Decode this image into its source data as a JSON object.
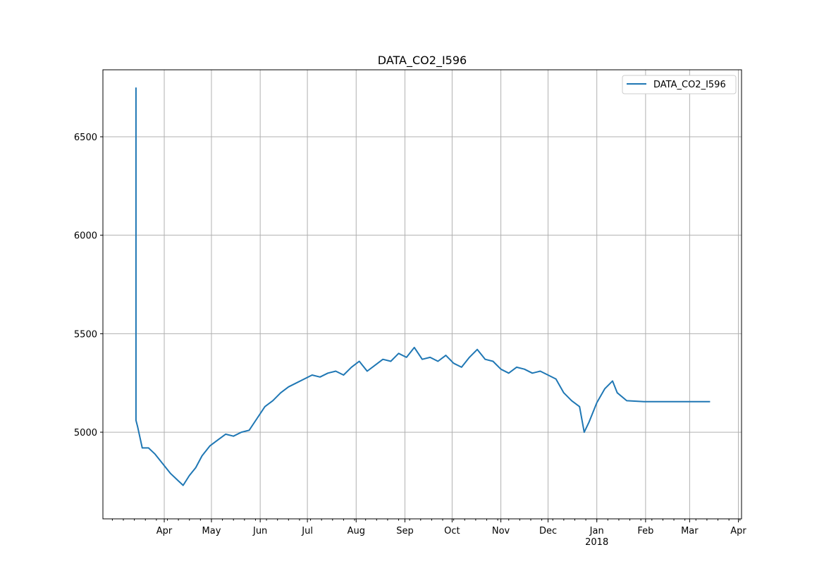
{
  "chart_data": {
    "type": "line",
    "title": "DATA_CO2_I596",
    "xlabel": "",
    "ylabel": "",
    "legend": {
      "placement": "top-right",
      "entries": [
        "DATA_CO2_I596"
      ]
    },
    "grid": true,
    "xlim": [
      "2017-02-21",
      "2018-04-03"
    ],
    "ylim": [
      4560,
      6840
    ],
    "x_ticks": [
      {
        "date": "2017-04-01",
        "label": "Apr"
      },
      {
        "date": "2017-05-01",
        "label": "May"
      },
      {
        "date": "2017-06-01",
        "label": "Jun"
      },
      {
        "date": "2017-07-01",
        "label": "Jul"
      },
      {
        "date": "2017-08-01",
        "label": "Aug"
      },
      {
        "date": "2017-09-01",
        "label": "Sep"
      },
      {
        "date": "2017-10-01",
        "label": "Oct"
      },
      {
        "date": "2017-11-01",
        "label": "Nov"
      },
      {
        "date": "2017-12-01",
        "label": "Dec"
      },
      {
        "date": "2018-01-01",
        "label": "Jan",
        "sublabel": "2018"
      },
      {
        "date": "2018-02-01",
        "label": "Feb"
      },
      {
        "date": "2018-03-01",
        "label": "Mar"
      },
      {
        "date": "2018-04-01",
        "label": "Apr"
      }
    ],
    "y_ticks": [
      5000,
      5500,
      6000,
      6500
    ],
    "series": [
      {
        "name": "DATA_CO2_I596",
        "color": "#1f77b4",
        "x": [
          "2017-03-14",
          "2017-03-14",
          "2017-03-15",
          "2017-03-18",
          "2017-03-22",
          "2017-03-26",
          "2017-03-31",
          "2017-04-05",
          "2017-04-09",
          "2017-04-13",
          "2017-04-17",
          "2017-04-21",
          "2017-04-25",
          "2017-04-30",
          "2017-05-05",
          "2017-05-10",
          "2017-05-15",
          "2017-05-20",
          "2017-05-25",
          "2017-05-30",
          "2017-06-04",
          "2017-06-09",
          "2017-06-14",
          "2017-06-19",
          "2017-06-24",
          "2017-06-29",
          "2017-07-04",
          "2017-07-09",
          "2017-07-14",
          "2017-07-19",
          "2017-07-24",
          "2017-07-29",
          "2017-08-03",
          "2017-08-08",
          "2017-08-13",
          "2017-08-18",
          "2017-08-23",
          "2017-08-28",
          "2017-09-02",
          "2017-09-07",
          "2017-09-12",
          "2017-09-17",
          "2017-09-22",
          "2017-09-27",
          "2017-10-02",
          "2017-10-07",
          "2017-10-12",
          "2017-10-17",
          "2017-10-22",
          "2017-10-27",
          "2017-11-01",
          "2017-11-06",
          "2017-11-11",
          "2017-11-16",
          "2017-11-21",
          "2017-11-26",
          "2017-12-01",
          "2017-12-06",
          "2017-12-11",
          "2017-12-16",
          "2017-12-21",
          "2017-12-24",
          "2017-12-27",
          "2018-01-01",
          "2018-01-06",
          "2018-01-11",
          "2018-01-14",
          "2018-01-20",
          "2018-01-31",
          "2018-02-15",
          "2018-03-01",
          "2018-03-14"
        ],
        "y": [
          6750,
          5060,
          5030,
          4920,
          4920,
          4890,
          4840,
          4790,
          4760,
          4730,
          4780,
          4820,
          4880,
          4930,
          4960,
          4990,
          4980,
          5000,
          5010,
          5070,
          5130,
          5160,
          5200,
          5230,
          5250,
          5270,
          5290,
          5280,
          5300,
          5310,
          5290,
          5330,
          5360,
          5310,
          5340,
          5370,
          5360,
          5400,
          5380,
          5430,
          5370,
          5380,
          5360,
          5390,
          5350,
          5330,
          5380,
          5420,
          5370,
          5360,
          5320,
          5300,
          5330,
          5320,
          5300,
          5310,
          5290,
          5270,
          5200,
          5160,
          5130,
          5000,
          5050,
          5150,
          5220,
          5260,
          5200,
          5160,
          5155,
          5155,
          5155,
          5155
        ]
      }
    ]
  }
}
